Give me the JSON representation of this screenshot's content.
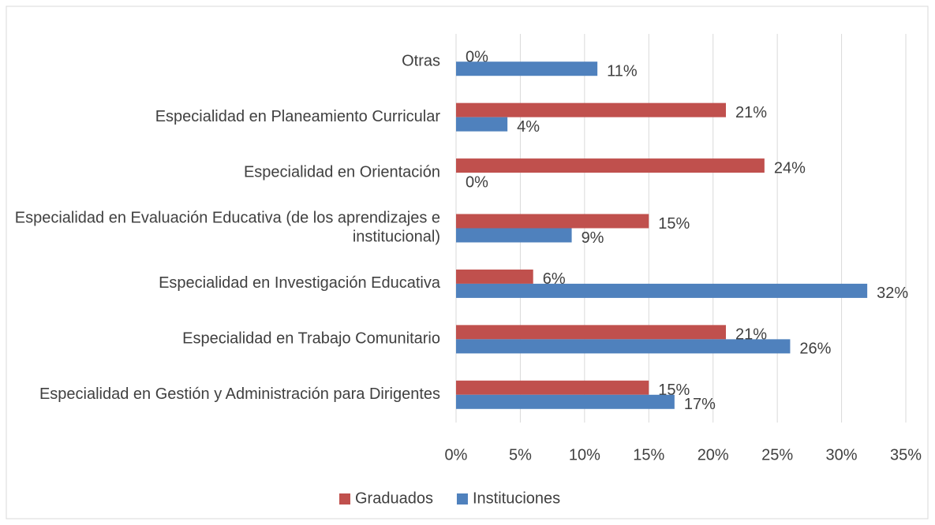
{
  "chart_data": {
    "type": "barh",
    "categories": [
      "Otras",
      "Especialidad en Planeamiento Curricular",
      "Especialidad en Orientación",
      "Especialidad en Evaluación Educativa (de los aprendizajes e institucional)",
      "Especialidad en Investigación Educativa",
      "Especialidad en Trabajo Comunitario",
      "Especialidad en Gestión y Administración para Dirigentes"
    ],
    "series": [
      {
        "name": "Graduados",
        "color": "#c0504d",
        "values": [
          0,
          21,
          24,
          15,
          6,
          21,
          15
        ],
        "value_labels": [
          "0%",
          "21%",
          "24%",
          "15%",
          "6%",
          "21%",
          "15%"
        ]
      },
      {
        "name": "Instituciones",
        "color": "#4f81bd",
        "values": [
          11,
          4,
          0,
          9,
          32,
          26,
          17
        ],
        "value_labels": [
          "11%",
          "4%",
          "0%",
          "9%",
          "32%",
          "26%",
          "17%"
        ]
      }
    ],
    "xlim": [
      0,
      35
    ],
    "xticks": [
      {
        "value": 0,
        "label": "0%"
      },
      {
        "value": 5,
        "label": "5%"
      },
      {
        "value": 10,
        "label": "10%"
      },
      {
        "value": 15,
        "label": "15%"
      },
      {
        "value": 20,
        "label": "20%"
      },
      {
        "value": 25,
        "label": "25%"
      },
      {
        "value": 30,
        "label": "30%"
      },
      {
        "value": 35,
        "label": "35%"
      }
    ],
    "grid": true,
    "legend": "bottom"
  }
}
